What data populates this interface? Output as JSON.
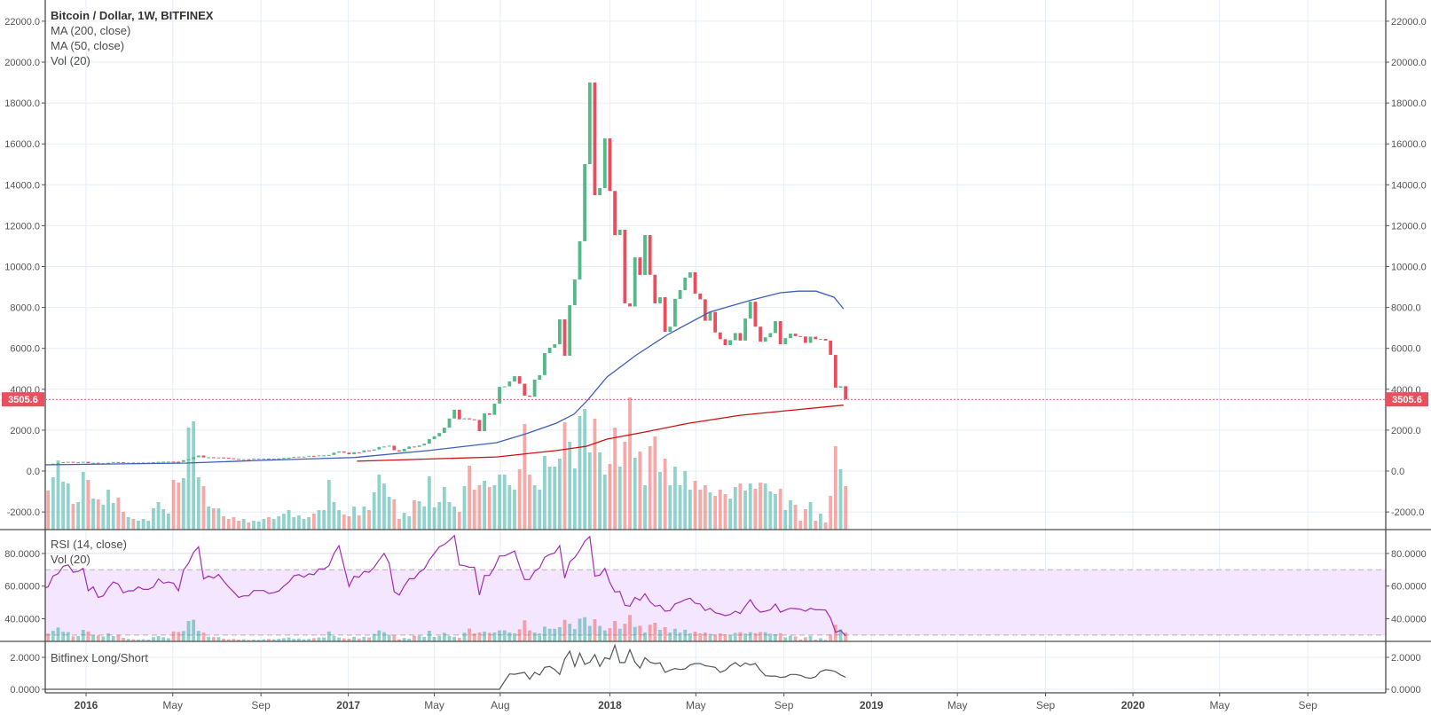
{
  "legend": {
    "title": "Bitcoin / Dollar, 1W, BITFINEX",
    "ma200": "MA (200, close)",
    "ma50": "MA (50, close)",
    "vol": "Vol (20)",
    "rsi": "RSI (14, close)",
    "rsi_vol": "Vol (20)",
    "longshort": "Bitfinex Long/Short"
  },
  "colors": {
    "up": "#53b987",
    "down": "#eb4d5c",
    "vol_up": "#26a69a",
    "vol_down": "#ef5350",
    "ma50": "#3e5fb8",
    "ma200": "#cc1010",
    "rsi": "#a02db4",
    "rsi_band": "#f4e6fe",
    "longshort": "#555555",
    "last_price": "#e9505f",
    "grid": "#e6eef5"
  },
  "chart_data": {
    "type": "candlestick",
    "title": "Bitcoin / Dollar, 1W, BITFINEX",
    "interval": "1W",
    "first_candle_date": "2015-10-26",
    "last_price": 3505.6,
    "last_price_label": "3505.6",
    "price_axis": {
      "range": [
        -3000,
        23000
      ],
      "ticks": [
        "22000.0",
        "20000.0",
        "18000.0",
        "16000.0",
        "14000.0",
        "12000.0",
        "10000.0",
        "8000.0",
        "6000.0",
        "4000.0",
        "2000.0",
        "0.0",
        "-2000.0"
      ]
    },
    "time_axis": [
      {
        "label": "2016",
        "date": "2016-01-01",
        "year": true
      },
      {
        "label": "May",
        "date": "2016-05-01"
      },
      {
        "label": "Sep",
        "date": "2016-09-01"
      },
      {
        "label": "2017",
        "date": "2017-01-01",
        "year": true
      },
      {
        "label": "May",
        "date": "2017-05-01"
      },
      {
        "label": "Aug",
        "date": "2017-08-01"
      },
      {
        "label": "2018",
        "date": "2018-01-01",
        "year": true
      },
      {
        "label": "May",
        "date": "2018-05-01"
      },
      {
        "label": "Sep",
        "date": "2018-09-01"
      },
      {
        "label": "2019",
        "date": "2019-01-01",
        "year": true
      },
      {
        "label": "May",
        "date": "2019-05-01"
      },
      {
        "label": "Sep",
        "date": "2019-09-01"
      },
      {
        "label": "2020",
        "date": "2020-01-01",
        "year": true
      },
      {
        "label": "May",
        "date": "2020-05-01"
      },
      {
        "label": "Sep",
        "date": "2020-09-01"
      }
    ],
    "close": [
      380,
      330,
      325,
      360,
      390,
      435,
      450,
      420,
      430,
      450,
      385,
      405,
      378,
      385,
      405,
      440,
      430,
      410,
      415,
      410,
      415,
      420,
      420,
      430,
      450,
      455,
      460,
      455,
      445,
      530,
      580,
      680,
      760,
      665,
      675,
      650,
      665,
      655,
      625,
      590,
      570,
      580,
      575,
      610,
      610,
      610,
      600,
      615,
      620,
      640,
      655,
      700,
      705,
      705,
      745,
      735,
      765,
      770,
      790,
      900,
      960,
      900,
      820,
      920,
      915,
      1010,
      1000,
      1055,
      1180,
      1200,
      1240,
      1020,
      960,
      1090,
      1200,
      1180,
      1250,
      1340,
      1560,
      1700,
      1860,
      2120,
      2570,
      3000,
      2530,
      2580,
      2530,
      2500,
      1950,
      2820,
      2750,
      3300,
      4120,
      4140,
      4380,
      4640,
      4270,
      3690,
      3640,
      4470,
      4690,
      5770,
      6030,
      6200,
      7420,
      5640,
      8110,
      9370,
      11240,
      15010,
      19000,
      13490,
      13840,
      16270,
      13700,
      11540,
      11800,
      8200,
      8050,
      10450,
      9590,
      11540,
      9600,
      8200,
      8500,
      6810,
      7060,
      8420,
      8850,
      9460,
      9720,
      8680,
      8400,
      7350,
      7780,
      6780,
      6450,
      6160,
      6400,
      6750,
      6380,
      7460,
      8280,
      7060,
      6330,
      6540,
      6750,
      7330,
      6200,
      6500,
      6720,
      6600,
      6580,
      6270,
      6570,
      6450,
      6460,
      6380,
      5680,
      4080,
      4150,
      3505.6
    ],
    "volume_relative": [
      40,
      30,
      44,
      59,
      78,
      54,
      52,
      29,
      31,
      65,
      56,
      35,
      34,
      28,
      45,
      30,
      36,
      20,
      14,
      12,
      10,
      12,
      10,
      24,
      31,
      23,
      18,
      56,
      53,
      58,
      115,
      122,
      59,
      49,
      26,
      24,
      24,
      15,
      12,
      14,
      10,
      12,
      8,
      10,
      9,
      12,
      14,
      12,
      15,
      18,
      22,
      14,
      16,
      12,
      14,
      18,
      22,
      22,
      56,
      31,
      22,
      17,
      15,
      26,
      16,
      26,
      22,
      42,
      62,
      52,
      37,
      34,
      12,
      19,
      15,
      33,
      32,
      26,
      60,
      25,
      31,
      48,
      31,
      26,
      20,
      49,
      72,
      45,
      50,
      55,
      48,
      50,
      62,
      62,
      50,
      45,
      68,
      119,
      62,
      50,
      45,
      83,
      71,
      71,
      80,
      121,
      99,
      69,
      128,
      136,
      87,
      125,
      87,
      62,
      74,
      115,
      71,
      99,
      149,
      81,
      88,
      50,
      94,
      105,
      65,
      80,
      50,
      71,
      50,
      66,
      45,
      55,
      45,
      50,
      42,
      38,
      45,
      40,
      35,
      48,
      52,
      44,
      52,
      46,
      53,
      52,
      43,
      40,
      46,
      22,
      33,
      28,
      10,
      23,
      31,
      10,
      18,
      8,
      38,
      94,
      68,
      49
    ],
    "ma50": {
      "name": "MA (50, close)",
      "points": [
        [
          "2015-11-02",
          305
        ],
        [
          "2016-05-20",
          390
        ],
        [
          "2016-09-01",
          520
        ],
        [
          "2016-12-30",
          650
        ],
        [
          "2017-01-10",
          665
        ],
        [
          "2017-04-23",
          1000
        ],
        [
          "2017-07-27",
          1390
        ],
        [
          "2017-09-06",
          1820
        ],
        [
          "2017-10-18",
          2340
        ],
        [
          "2017-11-12",
          2780
        ],
        [
          "2017-12-02",
          3510
        ],
        [
          "2017-12-28",
          4600
        ],
        [
          "2018-02-07",
          5680
        ],
        [
          "2018-03-23",
          6680
        ],
        [
          "2018-05-20",
          7770
        ],
        [
          "2018-07-18",
          8370
        ],
        [
          "2018-08-27",
          8720
        ],
        [
          "2018-09-21",
          8800
        ],
        [
          "2018-10-16",
          8800
        ],
        [
          "2018-11-10",
          8500
        ],
        [
          "2018-11-23",
          7940
        ]
      ]
    },
    "ma200": {
      "name": "MA (200, close)",
      "points": [
        [
          "2017-01-13",
          480
        ],
        [
          "2017-07-27",
          690
        ],
        [
          "2017-10-18",
          1000
        ],
        [
          "2017-11-29",
          1210
        ],
        [
          "2017-12-28",
          1560
        ],
        [
          "2018-02-19",
          1910
        ],
        [
          "2018-04-21",
          2340
        ],
        [
          "2018-07-02",
          2730
        ],
        [
          "2018-11-23",
          3225
        ]
      ]
    },
    "rsi": {
      "name": "RSI (14, close)",
      "bands": [
        30,
        70
      ],
      "ticks": [
        "80.0000",
        "60.0000",
        "40.0000"
      ],
      "values": [
        58,
        58.6,
        59.5,
        66.2,
        67.6,
        72.1,
        73,
        68.5,
        69,
        70.9,
        57.1,
        59.5,
        53.1,
        54,
        58.9,
        62.5,
        61.3,
        55.8,
        57.1,
        57.1,
        59.5,
        58,
        58,
        59.5,
        64.4,
        61.8,
        62.5,
        61.8,
        57.1,
        69.8,
        74,
        80.7,
        84,
        64.4,
        66.2,
        64.9,
        67.1,
        63.1,
        59.5,
        56.4,
        53.1,
        54,
        54,
        57.3,
        57.3,
        57.3,
        55.5,
        56,
        57,
        60,
        62.5,
        66.3,
        67,
        65.5,
        67.5,
        67,
        70.5,
        70.5,
        72.5,
        80,
        84.8,
        72,
        59.8,
        66,
        65.5,
        69,
        68.5,
        71.5,
        76,
        80,
        74,
        56.6,
        54.5,
        60,
        64.5,
        64.5,
        68.5,
        70.5,
        76,
        80,
        84,
        85.5,
        88,
        91,
        73,
        72.5,
        71.5,
        71.5,
        54.5,
        66.5,
        66.5,
        71.5,
        78.5,
        78.5,
        80,
        81.5,
        72,
        64,
        64,
        69,
        71.2,
        77.6,
        79.4,
        80.3,
        84.8,
        64.9,
        74.9,
        77.6,
        82,
        87.5,
        90.3,
        66.2,
        66.7,
        70.9,
        62.2,
        56.4,
        56.7,
        48.2,
        47.7,
        53.1,
        51.3,
        55.3,
        50.4,
        47.7,
        48.2,
        44.6,
        45,
        49.1,
        50.2,
        51.7,
        52.6,
        49.5,
        49,
        45,
        46.4,
        43.7,
        43,
        41.9,
        42.6,
        44.6,
        43.2,
        47.7,
        51.7,
        46.8,
        44,
        44.6,
        45.5,
        49,
        44,
        45.3,
        46.4,
        46.2,
        45.8,
        44.6,
        46.4,
        45.5,
        45.5,
        45.3,
        40.4,
        31.7,
        32.8,
        29.5
      ]
    },
    "longshort": {
      "name": "Bitfinex Long/Short",
      "ticks": [
        "2.0000",
        "0.0000"
      ],
      "values": [
        0,
        0,
        0,
        0,
        0,
        0,
        0,
        0,
        0,
        0,
        0,
        0,
        0,
        0,
        0,
        0,
        0,
        0,
        0,
        0,
        0,
        0,
        0,
        0,
        0,
        0,
        0,
        0,
        0,
        0,
        0,
        0,
        0,
        0,
        0,
        0,
        0,
        0,
        0,
        0,
        0,
        0,
        0,
        0,
        0,
        0,
        0,
        0,
        0,
        0,
        0,
        0,
        0,
        0,
        0,
        0,
        0,
        0,
        0,
        0,
        0,
        0,
        0,
        0,
        0,
        0,
        0,
        0,
        0,
        0,
        0,
        0,
        0,
        0,
        0,
        0,
        0,
        0,
        0,
        0,
        0,
        0,
        0,
        0,
        0,
        0,
        0,
        0,
        0,
        0,
        0,
        0,
        0,
        0.5,
        0.96,
        0.94,
        1.0,
        1.06,
        0.63,
        1.06,
        0.89,
        1.37,
        1.43,
        1.24,
        0.93,
        1.89,
        2.39,
        1.43,
        2.26,
        1.56,
        1.7,
        2.17,
        1.43,
        1.98,
        1.89,
        2.76,
        1.67,
        1.67,
        2.48,
        1.7,
        1.33,
        1.98,
        1.7,
        1.61,
        1.65,
        1.06,
        1.19,
        1.3,
        1.24,
        1.28,
        1.52,
        1.61,
        1.61,
        1.48,
        1.43,
        1.37,
        1.06,
        1.19,
        1.48,
        1.67,
        1.43,
        1.65,
        1.52,
        1.61,
        1.19,
        0.85,
        0.83,
        0.83,
        0.74,
        0.78,
        0.93,
        0.93,
        0.87,
        0.74,
        0.69,
        0.78,
        1.11,
        1.22,
        1.19,
        1.1,
        0.9,
        0.75
      ]
    }
  }
}
